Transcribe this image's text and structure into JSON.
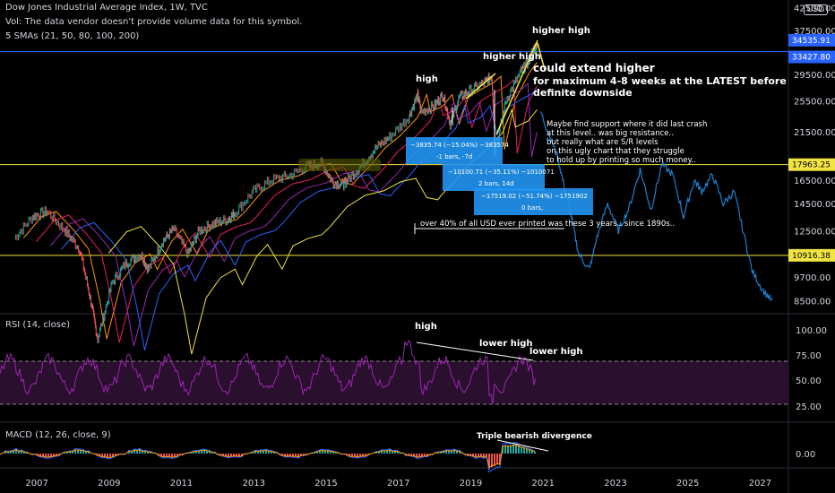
{
  "header": {
    "title": "Dow Jones Industrial Average Index, 1W, TVC",
    "vol_note": "Vol: The data vendor doesn't provide volume data for this symbol.",
    "smas": "5 SMAs (21, 50, 80, 100, 200)",
    "currency": "USD"
  },
  "panes": {
    "rsi_label": "RSI (14, close)",
    "macd_label": "MACD (12, 26, close, 9)"
  },
  "colors": {
    "background": "#000000",
    "horizontal_line": "#f0e442",
    "top_line": "#2962ff",
    "price_badge": "#2962ff",
    "rsi_line": "#9c27b0",
    "projection": "#2196f3",
    "measure_box": "#2196f3"
  },
  "annotations": {
    "high_main": "high",
    "higher_high_1": "higher high",
    "higher_high_2": "higher high",
    "extend_line1": "could extend higher",
    "extend_line2": "for maximum 4-8 weeks at the LATEST before",
    "extend_line3": "definite downside",
    "support_lines": [
      "Maybe find support where it did last crash",
      " at this level.. was big resistance..",
      "but really what are S/R levels",
      "on this ugly chart that they struggle",
      "to hold up by printing so much money.."
    ],
    "usd_note": "over 40% of all USD ever printed was these 3 years.. since 1890s..",
    "rsi_high": "high",
    "rsi_lower_high_1": "lower high",
    "rsi_lower_high_2": "lower high",
    "macd_divergence": "Triple bearish divergence"
  },
  "measures": [
    {
      "line1": "−3835.74 (−15.04%) −383574",
      "line2": "-1 bars, -7d"
    },
    {
      "line1": "−10100.71 (−35.11%) −1010071",
      "line2": "2 bars, 14d"
    },
    {
      "line1": "−17519.02 (−51.74%) −1751902",
      "line2": "0 bars,"
    }
  ],
  "chart_data": {
    "type": "line",
    "title": "Dow Jones Industrial Average Index, 1W, TVC",
    "price_axis": {
      "ticks": [
        "42500.00",
        "37500.00",
        "29500.00",
        "25500.00",
        "21500.00",
        "16500.00",
        "14500.00",
        "12500.00",
        "9700.00",
        "8500.00"
      ],
      "scale": "log",
      "range": [
        8000,
        43500
      ]
    },
    "x_axis": {
      "ticks": [
        "2007",
        "2009",
        "2011",
        "2013",
        "2015",
        "2017",
        "2019",
        "2021",
        "2023",
        "2025",
        "2027"
      ],
      "range": [
        2006.5,
        2028.3
      ]
    },
    "price_badges": [
      {
        "label": "34535.91",
        "value": 34535.91
      },
      {
        "label": "33427.80",
        "value": 33427.8
      },
      {
        "label": "17963.25",
        "value": 17963.25
      },
      {
        "label": "10916.38",
        "value": 10916.38
      }
    ],
    "horizontal_lines": [
      33427.8,
      17963.25,
      10916.38
    ],
    "series": [
      {
        "name": "price",
        "x": [
          2006.9,
          2007.4,
          2007.8,
          2008.3,
          2008.7,
          2009.0,
          2009.2,
          2009.6,
          2010.0,
          2010.4,
          2010.6,
          2011.0,
          2011.3,
          2011.7,
          2012.0,
          2012.4,
          2012.8,
          2013.0,
          2013.5,
          2014.0,
          2014.5,
          2015.0,
          2015.4,
          2015.7,
          2016.0,
          2016.1,
          2016.5,
          2016.9,
          2017.3,
          2017.8,
          2018.05,
          2018.15,
          2018.5,
          2018.75,
          2018.95,
          2019.2,
          2019.5,
          2019.9,
          2020.1,
          2020.2,
          2020.5,
          2020.9,
          2021.1,
          2021.25,
          2021.35
        ],
        "values": [
          12000,
          13500,
          13900,
          12500,
          11300,
          8600,
          6900,
          9400,
          10500,
          11000,
          10100,
          11800,
          12600,
          11000,
          12500,
          13000,
          13300,
          13800,
          15500,
          16500,
          16900,
          17800,
          18100,
          16300,
          16100,
          16500,
          17900,
          19700,
          21000,
          23300,
          26400,
          24000,
          24800,
          26400,
          22500,
          26000,
          27000,
          28200,
          29200,
          19500,
          25700,
          29900,
          31500,
          33800,
          34535
        ]
      },
      {
        "name": "projection",
        "x": [
          2021.45,
          2021.7,
          2021.9,
          2022.1,
          2022.3,
          2022.5,
          2022.8,
          2023.0,
          2023.3,
          2023.6,
          2023.9,
          2024.2,
          2024.5,
          2024.8,
          2025.1,
          2025.4,
          2025.7,
          2025.9,
          2026.2,
          2026.5,
          2026.8,
          2027.0,
          2027.3,
          2027.6,
          2027.9
        ],
        "values": [
          24000,
          21000,
          19000,
          16000,
          13500,
          11000,
          10100,
          12000,
          14500,
          12500,
          14200,
          17500,
          14000,
          18000,
          17000,
          13500,
          16500,
          15500,
          17000,
          14500,
          15500,
          13000,
          10000,
          9000,
          8400
        ]
      }
    ]
  }
}
